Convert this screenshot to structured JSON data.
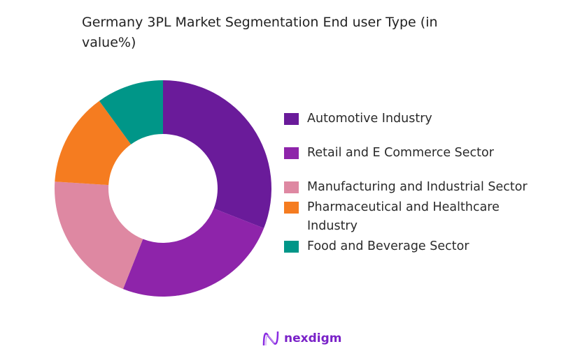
{
  "chart_data": {
    "type": "pie",
    "subtype": "donut",
    "title": "Germany 3PL Market Segmentation  End user Type (in value%)",
    "legend_position": "right",
    "slices": [
      {
        "label": "Automotive Industry",
        "value": 31,
        "color": "#6a1b9a"
      },
      {
        "label": "Retail and E Commerce Sector",
        "value": 25,
        "color": "#8e24aa"
      },
      {
        "label": "Manufacturing and Industrial Sector",
        "value": 20,
        "color": "#de88a2"
      },
      {
        "label": "Pharmaceutical and Healthcare Industry",
        "value": 14,
        "color": "#f57c20"
      },
      {
        "label": "Food and Beverage Sector",
        "value": 10,
        "color": "#009688"
      }
    ]
  },
  "brand": {
    "name": "nexdigm",
    "color": "#7a22c8"
  }
}
